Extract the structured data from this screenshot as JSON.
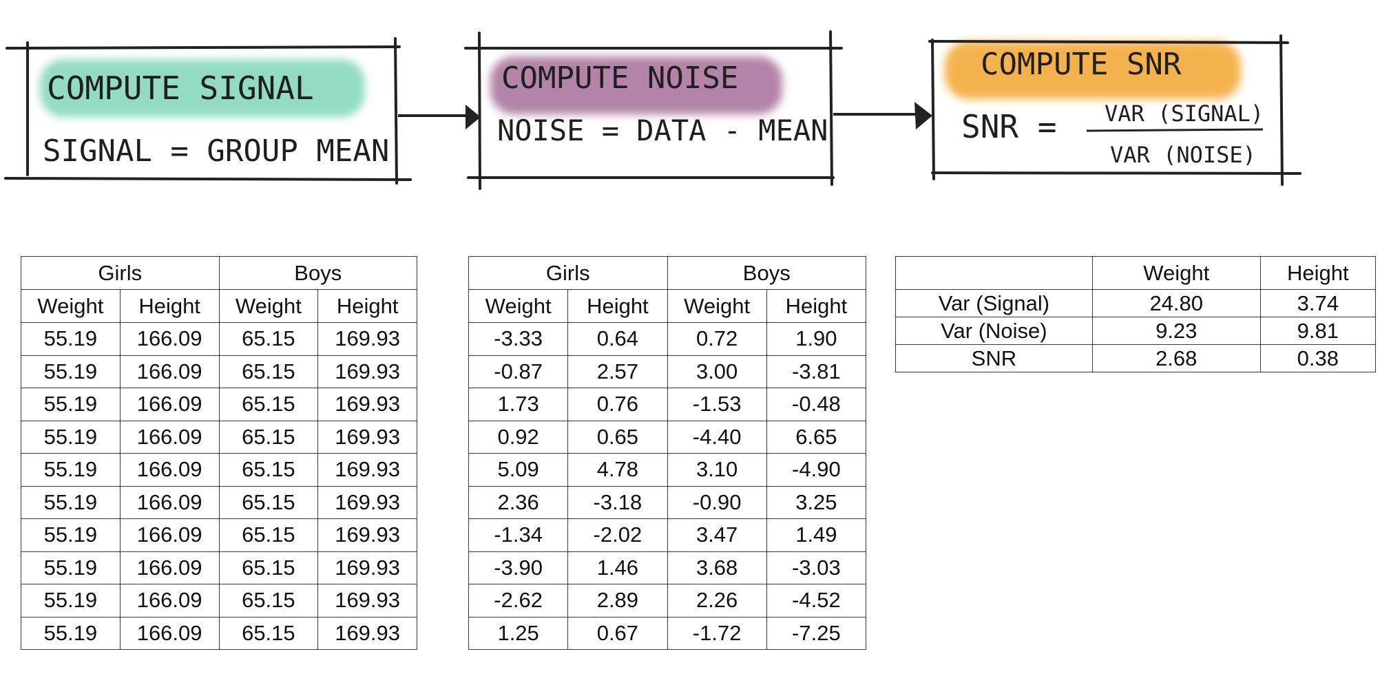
{
  "steps": [
    {
      "title": "COMPUTE SIGNAL",
      "formula": "SIGNAL = GROUP MEAN",
      "highlight": "#6fd0b0"
    },
    {
      "title": "COMPUTE NOISE",
      "formula": "NOISE = DATA - MEAN",
      "highlight": "#9a5c8a"
    },
    {
      "title": "COMPUTE SNR",
      "formula_lhs": "SNR =",
      "numerator": "VAR (SIGNAL)",
      "denominator": "VAR (NOISE)",
      "highlight": "#f2a024"
    }
  ],
  "signal_table": {
    "groups": [
      "Girls",
      "Boys"
    ],
    "columns": [
      "Weight",
      "Height",
      "Weight",
      "Height"
    ],
    "rows": [
      [
        "55.19",
        "166.09",
        "65.15",
        "169.93"
      ],
      [
        "55.19",
        "166.09",
        "65.15",
        "169.93"
      ],
      [
        "55.19",
        "166.09",
        "65.15",
        "169.93"
      ],
      [
        "55.19",
        "166.09",
        "65.15",
        "169.93"
      ],
      [
        "55.19",
        "166.09",
        "65.15",
        "169.93"
      ],
      [
        "55.19",
        "166.09",
        "65.15",
        "169.93"
      ],
      [
        "55.19",
        "166.09",
        "65.15",
        "169.93"
      ],
      [
        "55.19",
        "166.09",
        "65.15",
        "169.93"
      ],
      [
        "55.19",
        "166.09",
        "65.15",
        "169.93"
      ],
      [
        "55.19",
        "166.09",
        "65.15",
        "169.93"
      ]
    ]
  },
  "noise_table": {
    "groups": [
      "Girls",
      "Boys"
    ],
    "columns": [
      "Weight",
      "Height",
      "Weight",
      "Height"
    ],
    "rows": [
      [
        "-3.33",
        "0.64",
        "0.72",
        "1.90"
      ],
      [
        "-0.87",
        "2.57",
        "3.00",
        "-3.81"
      ],
      [
        "1.73",
        "0.76",
        "-1.53",
        "-0.48"
      ],
      [
        "0.92",
        "0.65",
        "-4.40",
        "6.65"
      ],
      [
        "5.09",
        "4.78",
        "3.10",
        "-4.90"
      ],
      [
        "2.36",
        "-3.18",
        "-0.90",
        "3.25"
      ],
      [
        "-1.34",
        "-2.02",
        "3.47",
        "1.49"
      ],
      [
        "-3.90",
        "1.46",
        "3.68",
        "-3.03"
      ],
      [
        "-2.62",
        "2.89",
        "2.26",
        "-4.52"
      ],
      [
        "1.25",
        "0.67",
        "-1.72",
        "-7.25"
      ]
    ]
  },
  "snr_table": {
    "corner": "",
    "columns": [
      "Weight",
      "Height"
    ],
    "rows": [
      {
        "label": "Var (Signal)",
        "values": [
          "24.80",
          "3.74"
        ]
      },
      {
        "label": "Var (Noise)",
        "values": [
          "9.23",
          "9.81"
        ]
      },
      {
        "label": "SNR",
        "values": [
          "2.68",
          "0.38"
        ]
      }
    ]
  }
}
